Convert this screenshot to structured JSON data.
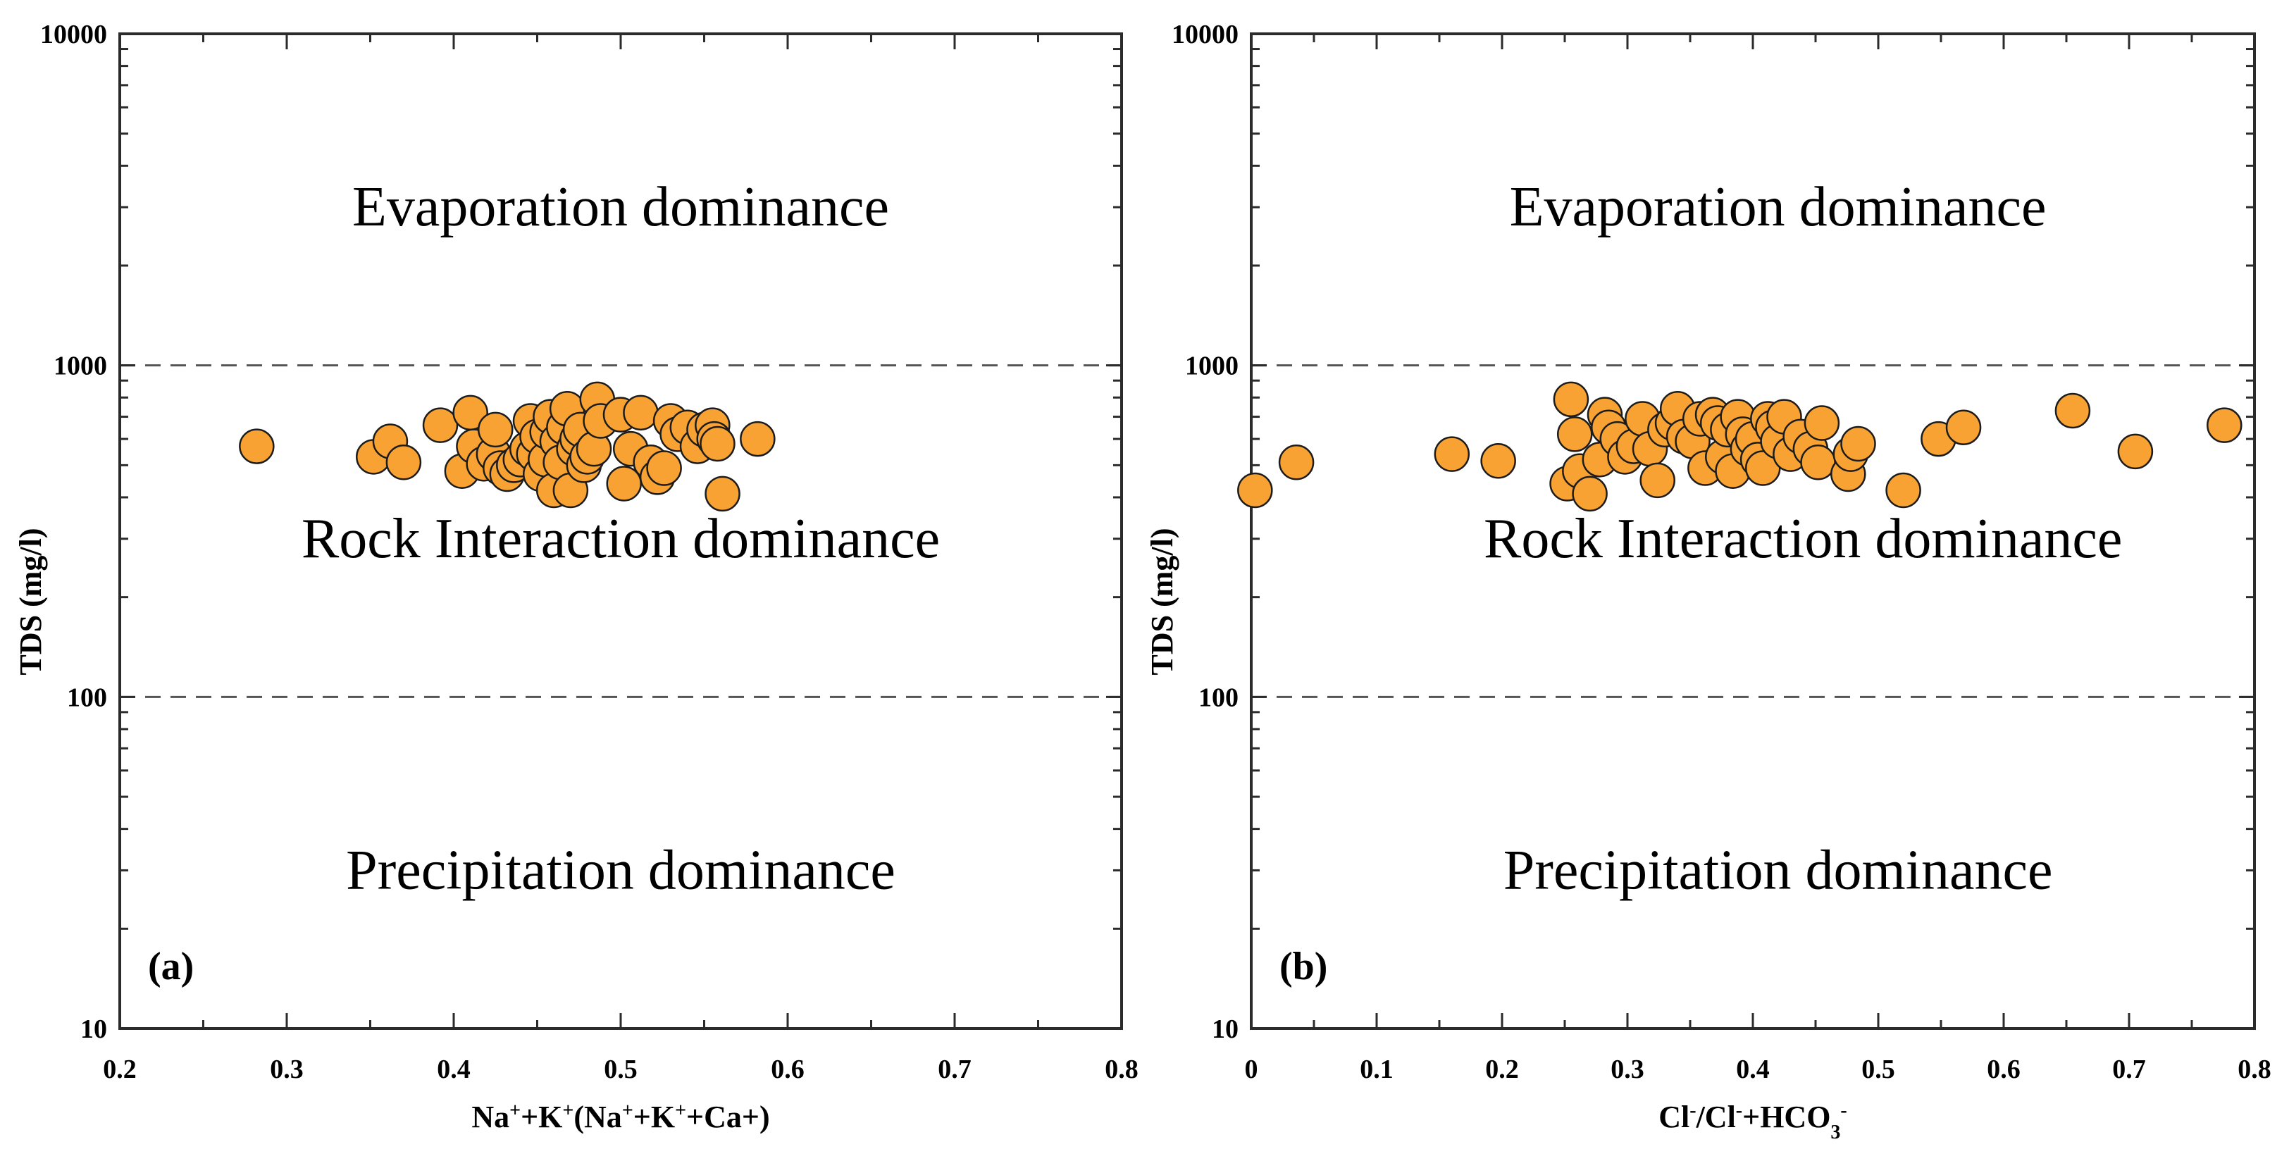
{
  "chart_data": [
    {
      "type": "scatter",
      "panel_label": "(a)",
      "ylabel": "TDS (mg/l)",
      "xlabel": {
        "parts": [
          {
            "t": "Na"
          },
          {
            "t": "+",
            "sup": true
          },
          {
            "t": "+K"
          },
          {
            "t": "+",
            "sup": true
          },
          {
            "t": "(Na"
          },
          {
            "t": "+",
            "sup": true
          },
          {
            "t": "+K"
          },
          {
            "t": "+",
            "sup": true
          },
          {
            "t": "+Ca+)"
          }
        ]
      },
      "x_range": [
        0.2,
        0.8
      ],
      "y_range": [
        10,
        10000
      ],
      "y_scale": "log",
      "x_ticks": [
        "0.2",
        "0.3",
        "0.4",
        "0.5",
        "0.6",
        "0.7",
        "0.8"
      ],
      "y_ticks": [
        "10",
        "100",
        "1000",
        "10000"
      ],
      "grid_y": [
        100,
        1000,
        10000
      ],
      "region_labels": [
        {
          "text": "Evaporation dominance",
          "x": 0.5,
          "y": 3000
        },
        {
          "text": "Rock Interaction dominance",
          "x": 0.5,
          "y": 300
        },
        {
          "text": "Precipitation dominance",
          "x": 0.5,
          "y": 30
        }
      ],
      "points": [
        [
          0.282,
          570
        ],
        [
          0.352,
          530
        ],
        [
          0.362,
          590
        ],
        [
          0.37,
          510
        ],
        [
          0.392,
          660
        ],
        [
          0.405,
          480
        ],
        [
          0.41,
          720
        ],
        [
          0.412,
          570
        ],
        [
          0.418,
          505
        ],
        [
          0.424,
          540
        ],
        [
          0.425,
          640
        ],
        [
          0.428,
          490
        ],
        [
          0.432,
          470
        ],
        [
          0.436,
          500
        ],
        [
          0.44,
          520
        ],
        [
          0.444,
          560
        ],
        [
          0.446,
          680
        ],
        [
          0.448,
          540
        ],
        [
          0.45,
          610
        ],
        [
          0.452,
          470
        ],
        [
          0.455,
          520
        ],
        [
          0.456,
          630
        ],
        [
          0.458,
          700
        ],
        [
          0.46,
          420
        ],
        [
          0.462,
          590
        ],
        [
          0.464,
          510
        ],
        [
          0.466,
          650
        ],
        [
          0.468,
          740
        ],
        [
          0.47,
          420
        ],
        [
          0.472,
          560
        ],
        [
          0.474,
          600
        ],
        [
          0.476,
          640
        ],
        [
          0.478,
          500
        ],
        [
          0.48,
          530
        ],
        [
          0.484,
          560
        ],
        [
          0.486,
          790
        ],
        [
          0.488,
          680
        ],
        [
          0.5,
          710
        ],
        [
          0.502,
          440
        ],
        [
          0.506,
          560
        ],
        [
          0.512,
          720
        ],
        [
          0.518,
          510
        ],
        [
          0.522,
          460
        ],
        [
          0.526,
          490
        ],
        [
          0.53,
          680
        ],
        [
          0.534,
          620
        ],
        [
          0.54,
          650
        ],
        [
          0.546,
          570
        ],
        [
          0.55,
          640
        ],
        [
          0.555,
          660
        ],
        [
          0.556,
          600
        ],
        [
          0.558,
          580
        ],
        [
          0.561,
          410
        ],
        [
          0.582,
          600
        ]
      ]
    },
    {
      "type": "scatter",
      "panel_label": "(b)",
      "ylabel": "TDS (mg/l)",
      "xlabel": {
        "parts": [
          {
            "t": "Cl"
          },
          {
            "t": "-",
            "sup": true
          },
          {
            "t": "/Cl"
          },
          {
            "t": "-",
            "sup": true
          },
          {
            "t": "+HCO"
          },
          {
            "t": "3",
            "sub": true
          },
          {
            "t": "-",
            "sup": true
          }
        ]
      },
      "x_range": [
        0,
        0.8
      ],
      "y_range": [
        10,
        10000
      ],
      "y_scale": "log",
      "x_ticks": [
        "0",
        "0.1",
        "0.2",
        "0.3",
        "0.4",
        "0.5",
        "0.6",
        "0.7",
        "0.8"
      ],
      "y_ticks": [
        "10",
        "100",
        "1000",
        "10000"
      ],
      "grid_y": [
        100,
        1000,
        10000
      ],
      "region_labels": [
        {
          "text": "Evaporation dominance",
          "x": 0.42,
          "y": 3000
        },
        {
          "text": "Rock Interaction dominance",
          "x": 0.44,
          "y": 300
        },
        {
          "text": "Precipitation dominance",
          "x": 0.42,
          "y": 30
        }
      ],
      "points": [
        [
          0.003,
          420
        ],
        [
          0.036,
          510
        ],
        [
          0.16,
          540
        ],
        [
          0.197,
          515
        ],
        [
          0.252,
          440
        ],
        [
          0.255,
          790
        ],
        [
          0.258,
          620
        ],
        [
          0.262,
          480
        ],
        [
          0.27,
          410
        ],
        [
          0.278,
          520
        ],
        [
          0.282,
          710
        ],
        [
          0.285,
          650
        ],
        [
          0.292,
          600
        ],
        [
          0.298,
          530
        ],
        [
          0.305,
          570
        ],
        [
          0.312,
          690
        ],
        [
          0.318,
          560
        ],
        [
          0.324,
          450
        ],
        [
          0.33,
          640
        ],
        [
          0.336,
          670
        ],
        [
          0.34,
          740
        ],
        [
          0.345,
          610
        ],
        [
          0.352,
          590
        ],
        [
          0.358,
          690
        ],
        [
          0.362,
          490
        ],
        [
          0.368,
          710
        ],
        [
          0.372,
          670
        ],
        [
          0.376,
          530
        ],
        [
          0.38,
          640
        ],
        [
          0.384,
          480
        ],
        [
          0.388,
          700
        ],
        [
          0.392,
          620
        ],
        [
          0.396,
          560
        ],
        [
          0.4,
          600
        ],
        [
          0.404,
          520
        ],
        [
          0.408,
          490
        ],
        [
          0.412,
          690
        ],
        [
          0.416,
          650
        ],
        [
          0.42,
          590
        ],
        [
          0.425,
          700
        ],
        [
          0.43,
          540
        ],
        [
          0.438,
          610
        ],
        [
          0.446,
          560
        ],
        [
          0.452,
          510
        ],
        [
          0.455,
          670
        ],
        [
          0.476,
          470
        ],
        [
          0.478,
          540
        ],
        [
          0.484,
          580
        ],
        [
          0.52,
          420
        ],
        [
          0.548,
          600
        ],
        [
          0.568,
          650
        ],
        [
          0.655,
          730
        ],
        [
          0.705,
          550
        ],
        [
          0.776,
          660
        ]
      ]
    }
  ]
}
